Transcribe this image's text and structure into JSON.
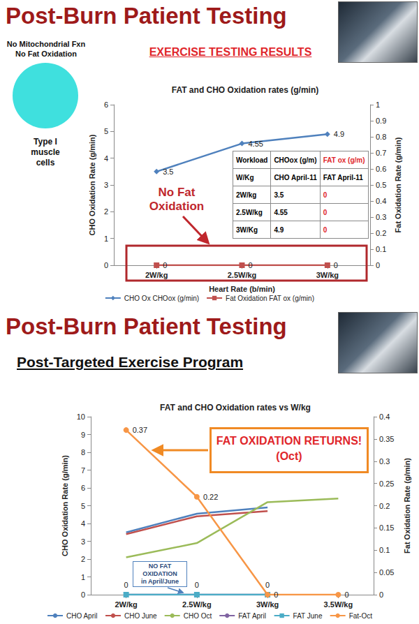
{
  "chart_data": [
    {
      "type": "line",
      "header": "Post-Burn Patient Testing",
      "subtitle": "EXERCISE TESTING RESULTS",
      "title": "FAT and CHO Oxidation rates (g/min)",
      "side_labels": {
        "above": [
          "No Mitochondrial Fxn",
          "No Fat Oxidation"
        ],
        "below": "Type I muscle cells"
      },
      "annotations": [
        [
          "No Fat",
          "Oxidation"
        ]
      ],
      "table": {
        "rows": [
          [
            "Workload",
            "CHOox (g/m)",
            "FAT ox (g/m)"
          ],
          [
            "W/Kg",
            "CHO April-11",
            "FAT April-11"
          ],
          [
            "2W/kg",
            "3.5",
            "0"
          ],
          [
            "2.5W/kg",
            "4.55",
            "0"
          ],
          [
            "3W/Kg",
            "4.9",
            "0"
          ]
        ]
      },
      "categories": [
        "2W/kg",
        "2.5W/kg",
        "3W/kg"
      ],
      "x_label": "Heart Rate (b/min)",
      "y_label": "CHO Oxidation Rate (g/min)",
      "y2_label": "Fat Oxidation Rate (g/min)",
      "ylim": [
        0,
        6
      ],
      "yticks": [
        0,
        1,
        2,
        3,
        4,
        5,
        6
      ],
      "y2lim": [
        0,
        1
      ],
      "y2ticks": [
        0,
        0.1,
        0.2,
        0.3,
        0.4,
        0.5,
        0.6,
        0.7,
        0.8,
        0.9,
        1
      ],
      "series": [
        {
          "name": "CHO Ox CHOox (g/min)",
          "color": "#4f81bd",
          "marker": "diamond",
          "values": [
            3.5,
            4.55,
            4.9
          ]
        },
        {
          "name": "Fat Oxidation FAT ox (g/min)",
          "color": "#c0504d",
          "marker": "square",
          "axis": "y2",
          "values": [
            0,
            0,
            0
          ]
        }
      ],
      "data_labels": true,
      "legend": "bottom",
      "grid": false
    },
    {
      "type": "line",
      "header": "Post-Burn Patient Testing",
      "subtitle": "Post-Targeted Exercise Program",
      "title": "FAT and CHO Oxidation rates vs W/kg",
      "annotations": [
        [
          "FAT OXIDATION RETURNS!",
          "(Oct)"
        ],
        [
          "NO FAT",
          "OXIDATION",
          "in April/June"
        ]
      ],
      "categories": [
        "2W/kg",
        "2.5W/kg",
        "3W/kg",
        "3.5W/kg"
      ],
      "y_label": "CHO Oxidation Rate (g/min)",
      "y2_label": "Fat Oxidation Rate (g/min)",
      "ylim": [
        0,
        10
      ],
      "yticks": [
        0,
        1,
        2,
        3,
        4,
        5,
        6,
        7,
        8,
        9,
        10
      ],
      "y2lim": [
        0,
        0.4
      ],
      "y2ticks": [
        0,
        0.05,
        0.1,
        0.15,
        0.2,
        0.25,
        0.3,
        0.35,
        0.4
      ],
      "series": [
        {
          "name": "CHO April",
          "color": "#4f81bd",
          "marker": "none",
          "values": [
            3.5,
            4.55,
            4.9,
            null
          ]
        },
        {
          "name": "CHO June",
          "color": "#c0504d",
          "marker": "none",
          "values": [
            3.4,
            4.4,
            4.7,
            null
          ]
        },
        {
          "name": "CHO Oct",
          "color": "#9bbb59",
          "marker": "none",
          "values": [
            2.1,
            2.9,
            5.2,
            5.4
          ]
        },
        {
          "name": "FAT April",
          "color": "#8064a2",
          "marker": "none",
          "axis": "y2",
          "values": [
            0,
            0,
            0,
            null
          ]
        },
        {
          "name": "FAT June",
          "color": "#4bacc6",
          "marker": "square",
          "axis": "y2",
          "data_labels": true,
          "values": [
            0,
            0,
            0,
            null
          ]
        },
        {
          "name": "Fat-Oct",
          "color": "#f79646",
          "marker": "circle",
          "axis": "y2",
          "data_labels": true,
          "values": [
            0.37,
            0.22,
            0,
            0
          ]
        }
      ],
      "legend": "bottom",
      "grid": false
    }
  ]
}
